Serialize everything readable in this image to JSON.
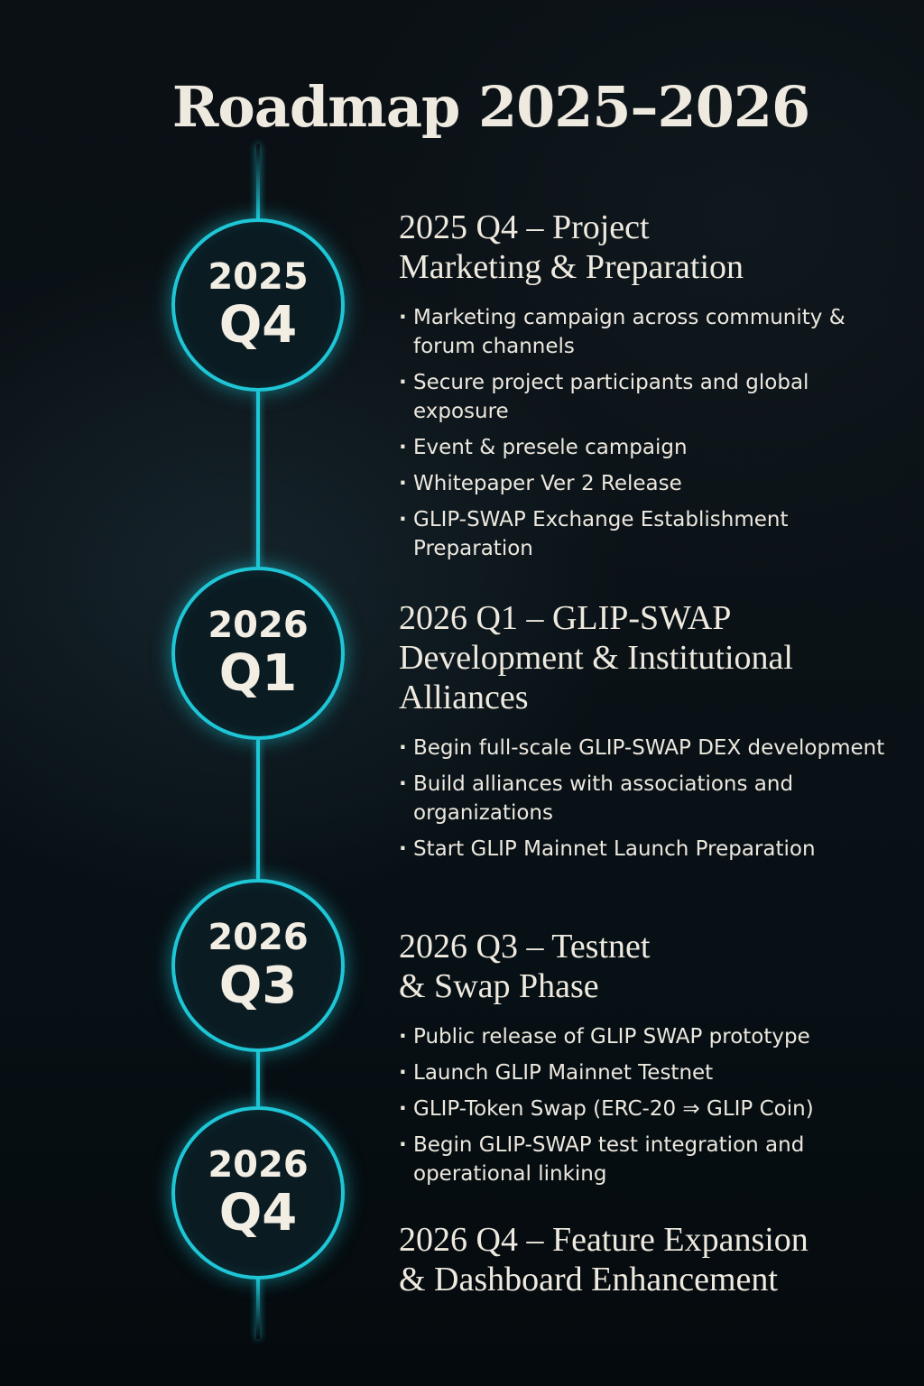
{
  "title": "Roadmap 2025–2026",
  "colors": {
    "accent": "#1ec6d6",
    "background": "#0a1014",
    "text": "#efeadf"
  },
  "milestones": [
    {
      "year": "2025",
      "quarter": "Q4",
      "heading_line1": "2025 Q4 – Project",
      "heading_line2": "Marketing & Preparation",
      "items": [
        "Marketing campaign across community & forum channels",
        "Secure project participants and global exposure",
        "Event & presele campaign",
        "Whitepaper Ver 2 Release",
        "GLIP-SWAP Exchange Establishment Preparation"
      ]
    },
    {
      "year": "2026",
      "quarter": "Q1",
      "heading_line1": "2026 Q1 – GLIP-SWAP",
      "heading_line2": "Development & Institutional",
      "heading_line3": "Alliances",
      "items": [
        "Begin full-scale GLIP-SWAP DEX development",
        "Build alliances with associations and organizations",
        "Start GLIP Mainnet Launch Preparation"
      ]
    },
    {
      "year": "2026",
      "quarter": "Q3",
      "heading_line1": "2026 Q3 – Testnet",
      "heading_line2": "& Swap Phase",
      "items": [
        "Public release of GLIP SWAP prototype",
        "Launch GLIP Mainnet Testnet",
        "GLIP-Token Swap (ERC-20 ⇒ GLIP Coin)",
        "Begin GLIP-SWAP test integration and operational linking"
      ]
    },
    {
      "year": "2026",
      "quarter": "Q4",
      "heading_line1": "2026 Q4 – Feature Expansion",
      "heading_line2": "& Dashboard Enhancement",
      "items": []
    }
  ]
}
